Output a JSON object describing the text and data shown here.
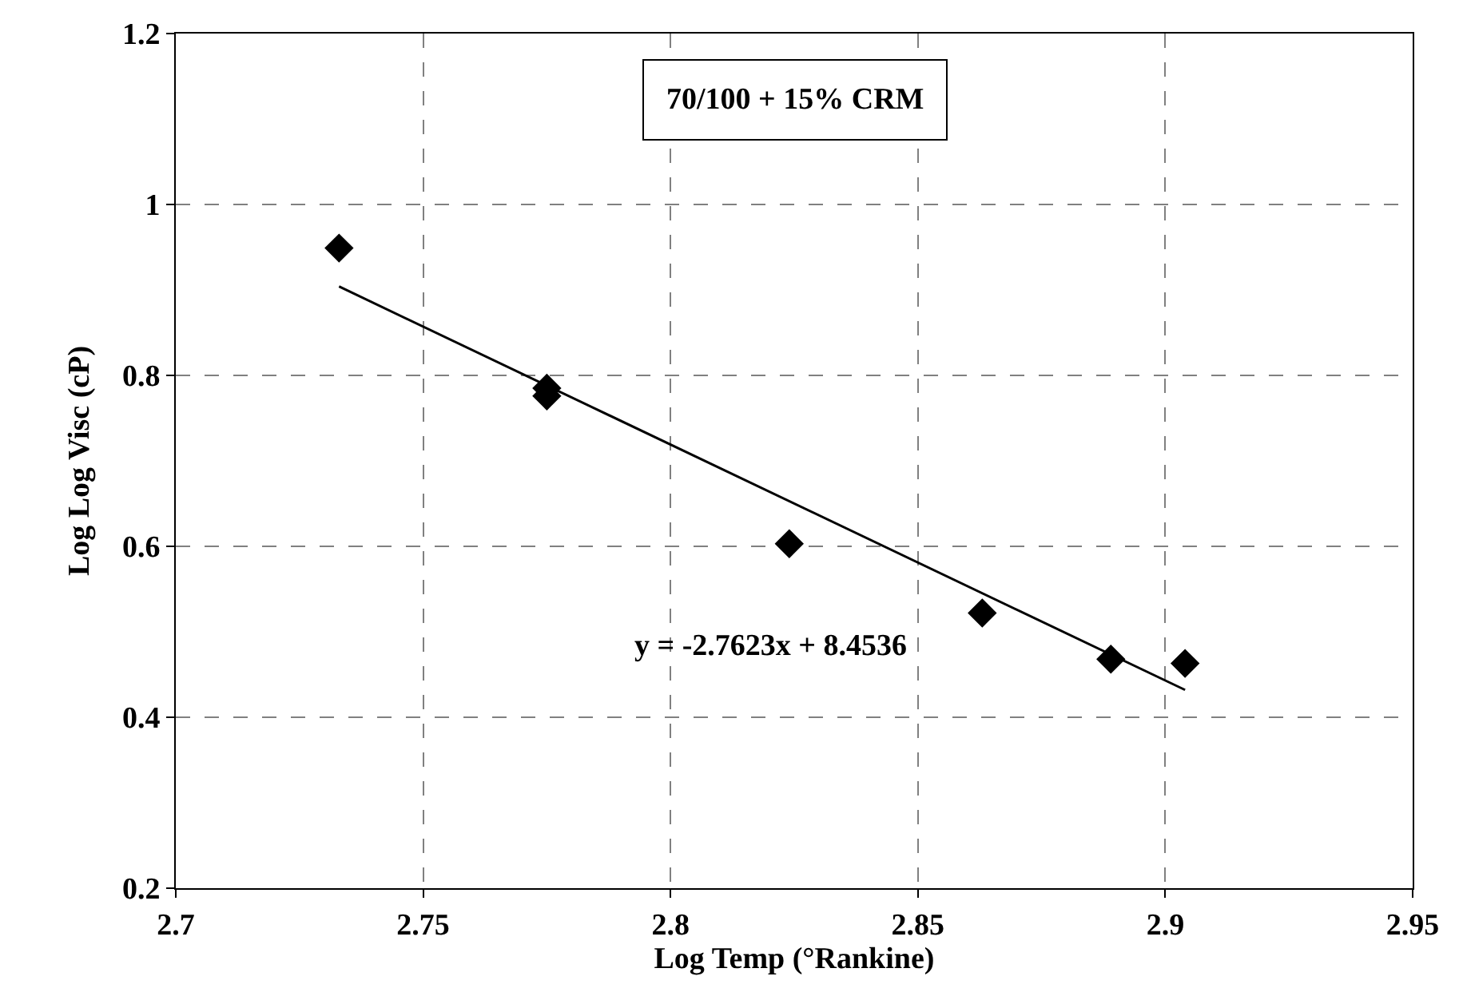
{
  "chart_data": {
    "type": "scatter",
    "title": "70/100 + 15% CRM",
    "xlabel": "Log Temp (°Rankine)",
    "ylabel": "Log Log Visc (cP)",
    "series": [
      {
        "color": "#000000",
        "marker": "diamond",
        "x": [
          2.733,
          2.775,
          2.775,
          2.824,
          2.863,
          2.889,
          2.904
        ],
        "values": [
          0.949,
          0.776,
          0.785,
          0.603,
          0.522,
          0.468,
          0.463
        ]
      },
      {
        "type": "line",
        "color": "#000000",
        "marker": "none",
        "x": [
          2.733,
          2.904
        ],
        "values": [
          0.904,
          0.432
        ]
      }
    ],
    "annotations": [
      "y = -2.7623x + 8.4536"
    ],
    "xlim": [
      2.7,
      2.95
    ],
    "xticks": [
      2.7,
      2.75,
      2.8,
      2.85,
      2.9,
      2.95
    ],
    "ylim": [
      0.2,
      1.2
    ],
    "yticks": [
      0.2,
      0.4,
      0.6,
      0.8,
      1,
      1.2
    ],
    "grid": true
  }
}
